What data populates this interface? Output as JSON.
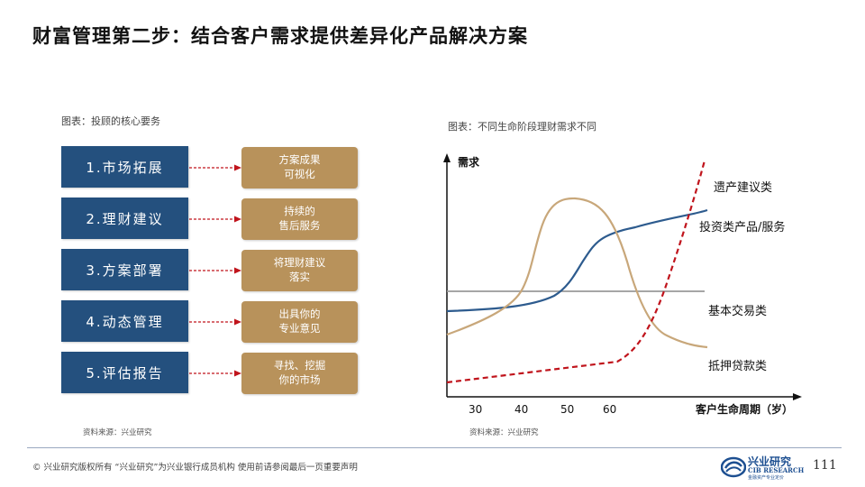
{
  "title": "财富管理第二步：结合客户需求提供差异化产品解决方案",
  "left": {
    "caption": "图表：投顾的核心要务",
    "steps": [
      {
        "label": "1.市场拓展",
        "result": [
          "方案成果",
          "可视化"
        ]
      },
      {
        "label": "2.理财建议",
        "result": [
          "持续的",
          "售后服务"
        ]
      },
      {
        "label": "3.方案部署",
        "result": [
          "将理财建议",
          "落实"
        ]
      },
      {
        "label": "4.动态管理",
        "result": [
          "出具你的",
          "专业意见"
        ]
      },
      {
        "label": "5.评估报告",
        "result": [
          "寻找、挖掘",
          "你的市场"
        ]
      }
    ],
    "source": "资料来源：兴业研究"
  },
  "right": {
    "caption": "图表：不同生命阶段理财需求不同",
    "source": "资料来源：兴业研究"
  },
  "chart_data": {
    "type": "line",
    "ylabel": "需求",
    "xlabel": "客户生命周期（岁）",
    "x_ticks": [
      "30",
      "40",
      "50",
      "60"
    ],
    "series": [
      {
        "name": "遗产建议类",
        "color": "#c0141c",
        "style": "dashed"
      },
      {
        "name": "投资类产品/服务",
        "color": "#2d5b8e",
        "style": "solid"
      },
      {
        "name": "基本交易类",
        "color": "#9a9a9a",
        "style": "solid"
      },
      {
        "name": "抵押贷款类",
        "color": "#c8a77a",
        "style": "solid"
      }
    ]
  },
  "footer": {
    "copyright": "©  兴业研究版权所有    “兴业研究”为兴业银行成员机构    使用前请参阅最后一页重要声明",
    "logo_main": "兴业研究",
    "logo_sub": "CIB RESEARCH",
    "logo_sub2": "金融资产专业定价",
    "page": "111"
  },
  "colors": {
    "step_bg": "#24507e",
    "result_bg": "#b8925b",
    "arrow": "#c0141c"
  }
}
